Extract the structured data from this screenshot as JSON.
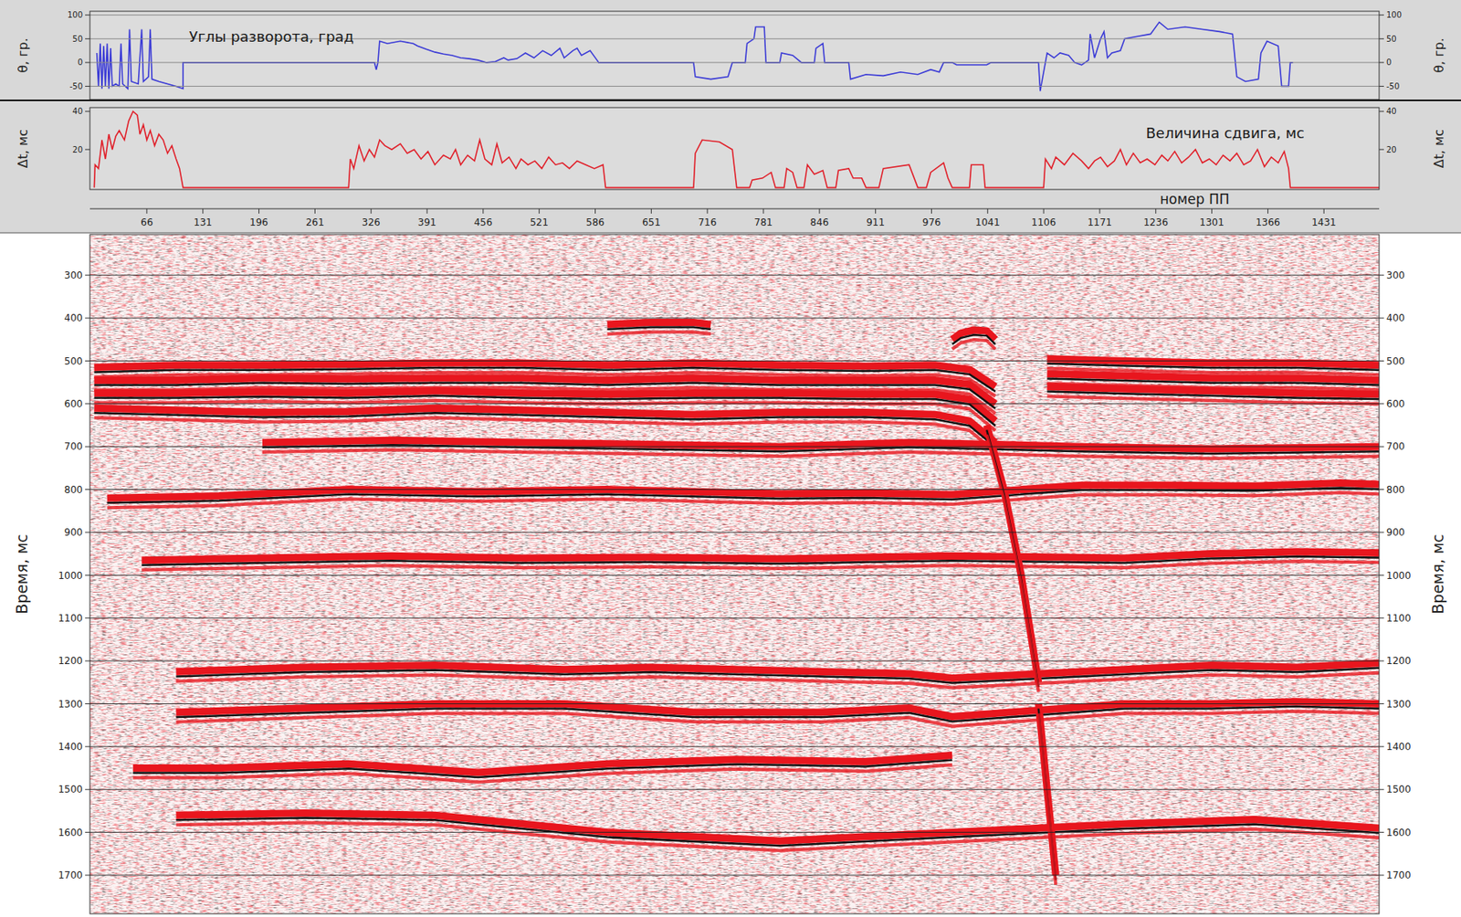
{
  "chart_data": [
    {
      "type": "line",
      "y_label": "θ, гр.",
      "annotation": "Углы разворота, град",
      "color": "#3b3bd6",
      "grid": true,
      "xlim": [
        0,
        1495
      ],
      "ylim": [
        -78,
        108
      ],
      "yticks": [
        -50,
        0,
        50,
        100
      ],
      "x": [
        8,
        10,
        12,
        14,
        16,
        18,
        20,
        22,
        24,
        26,
        30,
        34,
        36,
        38,
        44,
        46,
        48,
        56,
        60,
        62,
        68,
        70,
        72,
        80,
        90,
        100,
        108,
        108,
        330,
        332,
        334,
        336,
        345,
        360,
        375,
        380,
        390,
        400,
        410,
        420,
        430,
        440,
        450,
        460,
        470,
        480,
        485,
        495,
        505,
        515,
        525,
        535,
        545,
        550,
        560,
        565,
        570,
        580,
        588,
        590,
        700,
        702,
        720,
        740,
        745,
        760,
        762,
        770,
        772,
        782,
        784,
        800,
        802,
        815,
        825,
        840,
        842,
        850,
        852,
        880,
        882,
        900,
        920,
        940,
        960,
        975,
        985,
        990,
        1000,
        1005,
        1040,
        1045,
        1100,
        1102,
        1106,
        1110,
        1118,
        1125,
        1135,
        1142,
        1150,
        1158,
        1160,
        1165,
        1172,
        1176,
        1180,
        1185,
        1195,
        1200,
        1215,
        1230,
        1240,
        1250,
        1270,
        1290,
        1310,
        1325,
        1330,
        1340,
        1355,
        1358,
        1365,
        1378,
        1382,
        1390,
        1392,
        1395
      ],
      "values": [
        20,
        -50,
        40,
        -55,
        35,
        -50,
        40,
        -55,
        30,
        -50,
        -45,
        -50,
        40,
        -45,
        -55,
        70,
        -40,
        -45,
        70,
        -40,
        -30,
        70,
        -35,
        -40,
        -45,
        -50,
        -55,
        0,
        0,
        -15,
        0,
        45,
        40,
        45,
        40,
        35,
        28,
        22,
        18,
        15,
        10,
        8,
        5,
        0,
        2,
        10,
        5,
        8,
        20,
        10,
        25,
        15,
        30,
        10,
        25,
        30,
        15,
        25,
        5,
        0,
        0,
        -30,
        -35,
        -30,
        0,
        0,
        40,
        50,
        75,
        75,
        0,
        0,
        20,
        15,
        0,
        0,
        30,
        40,
        0,
        0,
        -35,
        -25,
        -28,
        -20,
        -25,
        -15,
        -20,
        0,
        0,
        -5,
        -5,
        0,
        0,
        -60,
        -20,
        20,
        10,
        20,
        15,
        0,
        -5,
        5,
        60,
        10,
        50,
        65,
        10,
        20,
        25,
        50,
        55,
        60,
        85,
        70,
        75,
        70,
        65,
        60,
        -30,
        -40,
        -35,
        20,
        45,
        35,
        -50,
        -50,
        0,
        0
      ]
    },
    {
      "type": "line",
      "y_label": "Δt, мс",
      "annotation": "Величина сдвига, мс",
      "color": "#e0202a",
      "grid": false,
      "xlim": [
        0,
        1495
      ],
      "ylim": [
        -1,
        42
      ],
      "yticks": [
        20,
        40
      ],
      "x": [
        5,
        6,
        10,
        14,
        18,
        22,
        26,
        30,
        34,
        40,
        45,
        50,
        55,
        58,
        62,
        66,
        70,
        75,
        80,
        85,
        90,
        95,
        100,
        104,
        108,
        300,
        302,
        306,
        312,
        318,
        324,
        330,
        336,
        342,
        350,
        360,
        368,
        376,
        384,
        392,
        400,
        410,
        418,
        424,
        430,
        438,
        446,
        452,
        458,
        466,
        472,
        478,
        486,
        494,
        500,
        508,
        516,
        524,
        532,
        540,
        548,
        556,
        565,
        575,
        585,
        595,
        598,
        700,
        702,
        710,
        730,
        745,
        750,
        765,
        768,
        780,
        790,
        795,
        805,
        808,
        815,
        820,
        828,
        832,
        840,
        850,
        855,
        865,
        868,
        880,
        885,
        895,
        900,
        915,
        920,
        950,
        960,
        970,
        975,
        990,
        995,
        1000,
        1020,
        1022,
        1036,
        1038,
        1106,
        1108,
        1115,
        1120,
        1130,
        1140,
        1150,
        1158,
        1165,
        1172,
        1180,
        1188,
        1195,
        1202,
        1210,
        1218,
        1226,
        1235,
        1243,
        1250,
        1258,
        1266,
        1274,
        1282,
        1290,
        1298,
        1306,
        1314,
        1322,
        1330,
        1338,
        1346,
        1354,
        1362,
        1370,
        1378,
        1385,
        1390,
        1392,
        1495
      ],
      "values": [
        0,
        12,
        10,
        25,
        15,
        28,
        20,
        27,
        30,
        25,
        35,
        40,
        38,
        28,
        33,
        25,
        30,
        22,
        28,
        25,
        18,
        22,
        15,
        10,
        0,
        0,
        15,
        10,
        22,
        14,
        20,
        16,
        25,
        22,
        20,
        23,
        18,
        20,
        15,
        19,
        12,
        17,
        15,
        20,
        12,
        17,
        14,
        25,
        15,
        12,
        23,
        13,
        16,
        10,
        15,
        12,
        14,
        10,
        16,
        12,
        13,
        10,
        14,
        12,
        10,
        12,
        0,
        0,
        18,
        25,
        24,
        20,
        0,
        0,
        4,
        5,
        8,
        0,
        0,
        10,
        8,
        0,
        0,
        12,
        7,
        9,
        0,
        0,
        9,
        10,
        5,
        5,
        0,
        0,
        10,
        12,
        0,
        0,
        8,
        13,
        5,
        0,
        0,
        12,
        12,
        0,
        0,
        15,
        10,
        16,
        12,
        18,
        14,
        10,
        14,
        16,
        11,
        14,
        20,
        12,
        18,
        13,
        15,
        12,
        17,
        14,
        19,
        13,
        16,
        20,
        13,
        15,
        12,
        17,
        14,
        18,
        12,
        14,
        20,
        11,
        16,
        13,
        19,
        10,
        0,
        0
      ]
    },
    {
      "type": "seismic",
      "x_label": "номер ПП",
      "y_label": "Время, мс",
      "color": "#e8161e",
      "grid": true,
      "xlim": [
        0,
        1495
      ],
      "xticks": [
        66,
        131,
        196,
        261,
        326,
        391,
        456,
        521,
        586,
        651,
        716,
        781,
        846,
        911,
        976,
        1041,
        1106,
        1171,
        1236,
        1301,
        1366,
        1431
      ],
      "ylim": [
        1790,
        205
      ],
      "yticks": [
        300,
        400,
        500,
        600,
        700,
        800,
        900,
        1000,
        1100,
        1200,
        1300,
        1400,
        1500,
        1600,
        1700
      ],
      "reflectors": [
        {
          "x": [
            5,
            100,
            200,
            300,
            400,
            500,
            600,
            700,
            800,
            900,
            980,
            1020,
            1050,
            1080,
            1110,
            1200,
            1300,
            1400,
            1495
          ],
          "values": [
            515,
            510,
            510,
            508,
            505,
            505,
            510,
            505,
            510,
            512,
            510,
            520,
            560,
            null,
            495,
            500,
            505,
            505,
            510
          ]
        },
        {
          "x": [
            5,
            100,
            200,
            300,
            400,
            500,
            600,
            700,
            800,
            900,
            980,
            1020,
            1050,
            1080,
            1110,
            1200,
            1300,
            1400,
            1495
          ],
          "values": [
            545,
            545,
            540,
            542,
            540,
            540,
            545,
            540,
            545,
            545,
            545,
            555,
            600,
            null,
            530,
            535,
            540,
            540,
            545
          ]
        },
        {
          "x": [
            5,
            100,
            200,
            300,
            400,
            500,
            600,
            700,
            800,
            900,
            980,
            1020,
            1050,
            1080,
            1110,
            1200,
            1300,
            1400,
            1495
          ],
          "values": [
            575,
            575,
            572,
            575,
            570,
            575,
            578,
            575,
            575,
            578,
            578,
            590,
            640,
            null,
            560,
            565,
            570,
            575,
            578
          ]
        },
        {
          "x": [
            5,
            100,
            200,
            300,
            400,
            500,
            600,
            700,
            800,
            900,
            980,
            1020,
            1050
          ],
          "values": [
            610,
            615,
            620,
            618,
            610,
            615,
            620,
            625,
            620,
            620,
            625,
            640,
            690
          ]
        },
        {
          "x": [
            200,
            350,
            500,
            650,
            800,
            950,
            1150,
            1300,
            1495
          ],
          "values": [
            690,
            685,
            690,
            695,
            700,
            690,
            700,
            705,
            700
          ]
        },
        {
          "x": [
            20,
            150,
            300,
            450,
            600,
            700,
            800,
            900,
            1000,
            1150,
            1250,
            1350,
            1450,
            1495
          ],
          "values": [
            820,
            815,
            800,
            805,
            800,
            805,
            810,
            808,
            812,
            790,
            790,
            792,
            785,
            788
          ]
        },
        {
          "x": [
            60,
            200,
            350,
            500,
            650,
            800,
            900,
            1000,
            1200,
            1300,
            1400,
            1495
          ],
          "values": [
            965,
            960,
            955,
            960,
            958,
            962,
            958,
            955,
            960,
            950,
            945,
            948
          ]
        },
        {
          "x": [
            100,
            250,
            400,
            550,
            650,
            750,
            850,
            950,
            1000,
            1200,
            1300,
            1400,
            1495
          ],
          "values": [
            1225,
            1215,
            1210,
            1220,
            1215,
            1220,
            1225,
            1230,
            1240,
            1220,
            1210,
            1215,
            1205
          ]
        },
        {
          "x": [
            100,
            250,
            400,
            550,
            700,
            850,
            950,
            1000,
            1200,
            1300,
            1400,
            1495
          ],
          "values": [
            1320,
            1310,
            1300,
            1300,
            1320,
            1320,
            1310,
            1330,
            1300,
            1300,
            1295,
            1300
          ]
        },
        {
          "x": [
            50,
            150,
            300,
            450,
            600,
            750,
            900,
            1000
          ],
          "values": [
            1450,
            1450,
            1440,
            1460,
            1440,
            1430,
            1435,
            1420
          ]
        },
        {
          "x": [
            100,
            250,
            400,
            600,
            800,
            1000,
            1200,
            1350,
            1495
          ],
          "values": [
            1560,
            1555,
            1560,
            1600,
            1620,
            1600,
            1580,
            1570,
            1590
          ]
        },
        {
          "x": [
            1000,
            1010,
            1025,
            1040,
            1050
          ],
          "values": [
            450,
            435,
            428,
            430,
            450
          ]
        },
        {
          "x": [
            600,
            650,
            700,
            720
          ],
          "values": [
            415,
            410,
            410,
            415
          ]
        },
        {
          "x": [
            1040,
            1060,
            1080,
            1100
          ],
          "values": [
            650,
            800,
            1000,
            1250
          ]
        },
        {
          "x": [
            1100,
            1110,
            1120
          ],
          "values": [
            1300,
            1500,
            1700
          ]
        }
      ]
    }
  ]
}
